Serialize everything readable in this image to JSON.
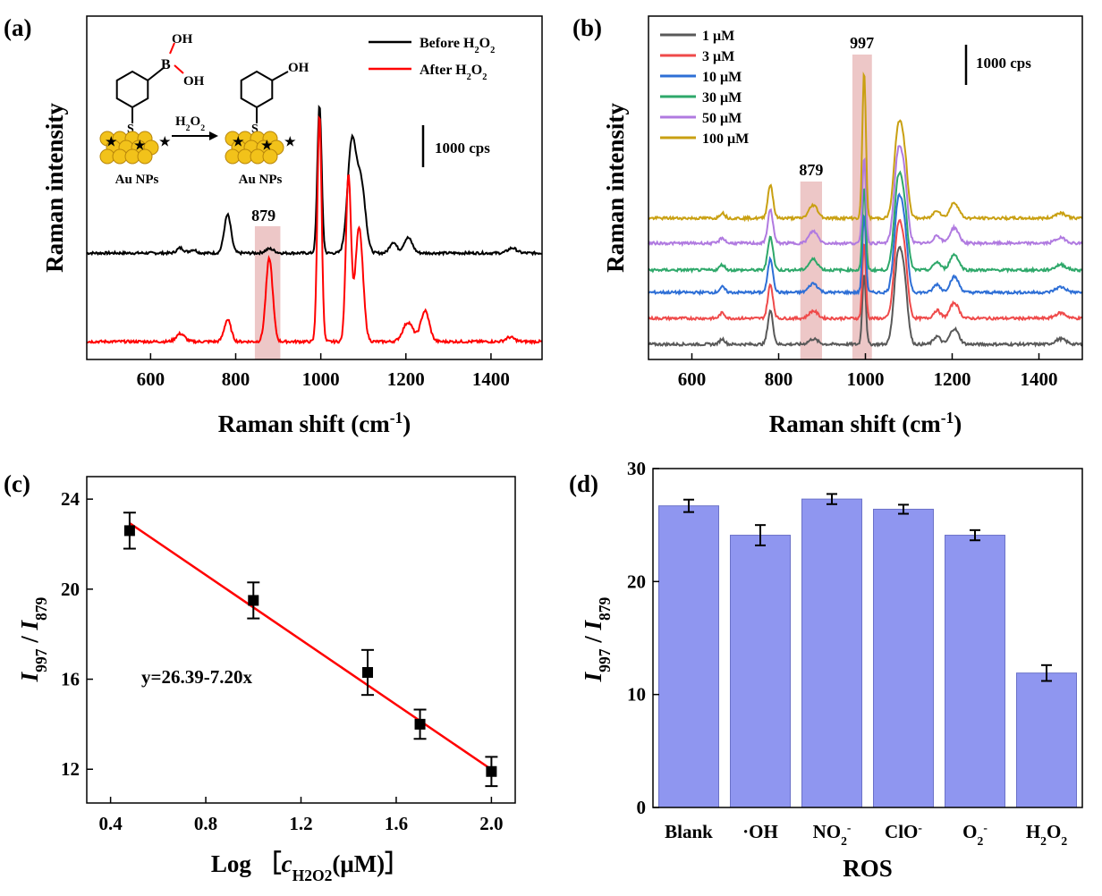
{
  "chart_data": [
    {
      "panel": "(a)",
      "type": "line",
      "xlabel": "Raman shift (cm",
      "xlabel_sup": "-1",
      "xlabel_close": ")",
      "ylabel": "Raman intensity",
      "xlim": [
        450,
        1520
      ],
      "x_ticks": [
        600,
        800,
        1000,
        1200,
        1400
      ],
      "scale_bar_label": "1000 cps",
      "band_label": "879",
      "band_range": [
        845,
        905
      ],
      "legend": [
        {
          "label": "Before  H",
          "sub1": "2",
          "mid": "O",
          "sub2": "2",
          "color": "#000000"
        },
        {
          "label": "After  H",
          "sub1": "2",
          "mid": "O",
          "sub2": "2",
          "color": "#ff0000"
        }
      ],
      "series": [
        {
          "name": "Before H2O2",
          "color": "#000000",
          "baseline": 0.0,
          "peaks": [
            [
              670,
              0.06,
              8
            ],
            [
              700,
              0.04,
              8
            ],
            [
              781,
              0.45,
              8
            ],
            [
              880,
              0.05,
              10
            ],
            [
              997,
              1.75,
              5
            ],
            [
              1073,
              1.3,
              10
            ],
            [
              1095,
              0.8,
              10
            ],
            [
              1170,
              0.13,
              8
            ],
            [
              1205,
              0.18,
              10
            ],
            [
              1450,
              0.06,
              10
            ]
          ]
        },
        {
          "name": "After H2O2",
          "color": "#ff0000",
          "baseline": 0.0,
          "peaks": [
            [
              670,
              0.09,
              10
            ],
            [
              781,
              0.25,
              8
            ],
            [
              879,
              0.95,
              8
            ],
            [
              997,
              2.6,
              5
            ],
            [
              1065,
              1.9,
              6
            ],
            [
              1090,
              1.3,
              9
            ],
            [
              1205,
              0.22,
              12
            ],
            [
              1245,
              0.35,
              10
            ],
            [
              1445,
              0.05,
              10
            ]
          ]
        }
      ],
      "inset": {
        "reactant_label": "Au NPs",
        "product_label": "Au NPs",
        "reagent": "H",
        "reagent_sub1": "2",
        "reagent_mid": "O",
        "reagent_sub2": "2",
        "oh_top": "OH",
        "oh_side": "OH",
        "boron": "B",
        "sulfur": "S",
        "phenol_oh": "OH"
      }
    },
    {
      "panel": "(b)",
      "type": "line",
      "xlabel": "Raman shift (cm",
      "xlabel_sup": "-1",
      "xlabel_close": ")",
      "ylabel": "Raman intensity",
      "xlim": [
        500,
        1500
      ],
      "x_ticks": [
        600,
        800,
        1000,
        1200,
        1400
      ],
      "scale_bar_label": "1000 cps",
      "band_labels": [
        "879",
        "997"
      ],
      "band_ranges": [
        [
          850,
          900
        ],
        [
          970,
          1015
        ]
      ],
      "series": [
        {
          "name": "1 μM",
          "color": "#595959",
          "ratio": 26.4
        },
        {
          "name": "3 μM",
          "color": "#ef4a4a",
          "ratio": 22.6
        },
        {
          "name": "10 μM",
          "color": "#2e6fd6",
          "ratio": 19.5
        },
        {
          "name": "30 μM",
          "color": "#2ea86a",
          "ratio": 16.3
        },
        {
          "name": "50 μM",
          "color": "#b07ae0",
          "ratio": 14.0
        },
        {
          "name": "100 μM",
          "color": "#c9a012",
          "ratio": 11.9
        }
      ]
    },
    {
      "panel": "(c)",
      "type": "scatter",
      "xlabel_prefix": "Log  ［",
      "xlabel_c": "c",
      "xlabel_sub": "H",
      "xlabel_sub2": "2",
      "xlabel_sub3": "O",
      "xlabel_sub4": "2",
      "xlabel_suffix": "(μM)］",
      "ylabel_i": "I",
      "ylabel_s1": "997",
      "ylabel_mid": " / ",
      "ylabel_s2": "879",
      "xlim": [
        0.3,
        2.1
      ],
      "ylim": [
        10.5,
        25
      ],
      "x_ticks": [
        "0.4",
        "0.8",
        "1.2",
        "1.6",
        "2.0"
      ],
      "y_ticks": [
        "12",
        "16",
        "20",
        "24"
      ],
      "equation": "y=26.39-7.20x",
      "fit": {
        "intercept": 26.39,
        "slope": -7.2
      },
      "points": [
        {
          "x": 0.48,
          "y": 22.6,
          "err": 0.8
        },
        {
          "x": 1.0,
          "y": 19.5,
          "err": 0.8
        },
        {
          "x": 1.48,
          "y": 16.3,
          "err": 1.0
        },
        {
          "x": 1.7,
          "y": 14.0,
          "err": 0.65
        },
        {
          "x": 2.0,
          "y": 11.9,
          "err": 0.65
        }
      ]
    },
    {
      "panel": "(d)",
      "type": "bar",
      "xlabel": "ROS",
      "ylabel_i": "I",
      "ylabel_s1": "997",
      "ylabel_mid": " / ",
      "ylabel_s2": "879",
      "ylim": [
        0,
        30
      ],
      "y_ticks": [
        "0",
        "10",
        "20",
        "30"
      ],
      "bar_color": "#8f96f0",
      "categories": [
        {
          "label": "Blank",
          "value": 26.7,
          "err": 0.55
        },
        {
          "label": "·OH",
          "value": 24.1,
          "err": 0.9
        },
        {
          "label": "NO",
          "sub": "2",
          "sup": "-",
          "value": 27.3,
          "err": 0.45
        },
        {
          "label": "ClO",
          "sup": "-",
          "value": 26.4,
          "err": 0.4
        },
        {
          "label": "O",
          "sub": "2",
          "sup": "-",
          "value": 24.1,
          "err": 0.45
        },
        {
          "label": "H",
          "sub": "2",
          "label2": "O",
          "sub2": "2",
          "value": 11.9,
          "err": 0.7
        }
      ]
    }
  ]
}
